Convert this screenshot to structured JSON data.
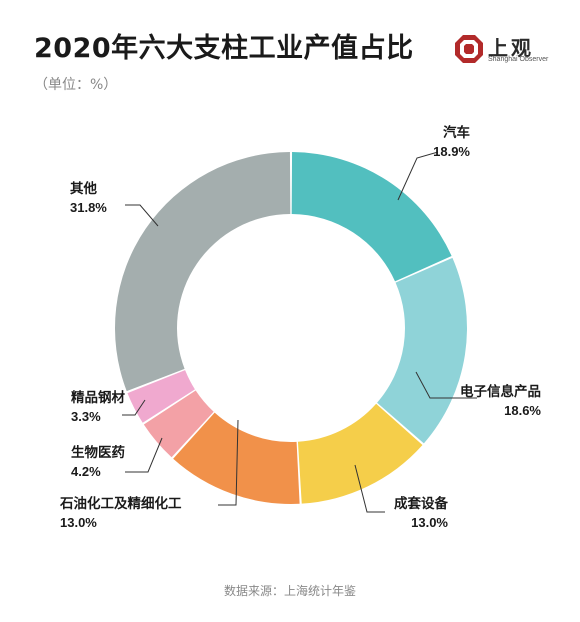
{
  "header": {
    "title": "2020年六大支柱工业产值占比",
    "unit": "（单位：%）"
  },
  "logo": {
    "name": "上观",
    "subtitle": "Shanghai Observer",
    "color": "#b22a2a"
  },
  "footer": {
    "source": "数据来源：上海统计年鉴"
  },
  "chart_data": {
    "type": "pie",
    "donut": true,
    "title": "2020年六大支柱工业产值占比",
    "unit": "%",
    "categories": [
      "汽车",
      "电子信息产品",
      "成套设备",
      "石油化工及精细化工",
      "生物医药",
      "精品钢材",
      "其他"
    ],
    "values": [
      18.9,
      18.6,
      13.0,
      13.0,
      4.2,
      3.3,
      31.8
    ],
    "value_labels": [
      "18.9%",
      "18.6%",
      "13.0%",
      "13.0%",
      "4.2%",
      "3.3%",
      "31.8%"
    ],
    "colors": [
      "#52bfbf",
      "#8fd3d8",
      "#f5ce4a",
      "#f1914a",
      "#f3a1a6",
      "#f0a9cf",
      "#a4aeae"
    ],
    "start_angle_deg": 0,
    "direction": "clockwise"
  }
}
